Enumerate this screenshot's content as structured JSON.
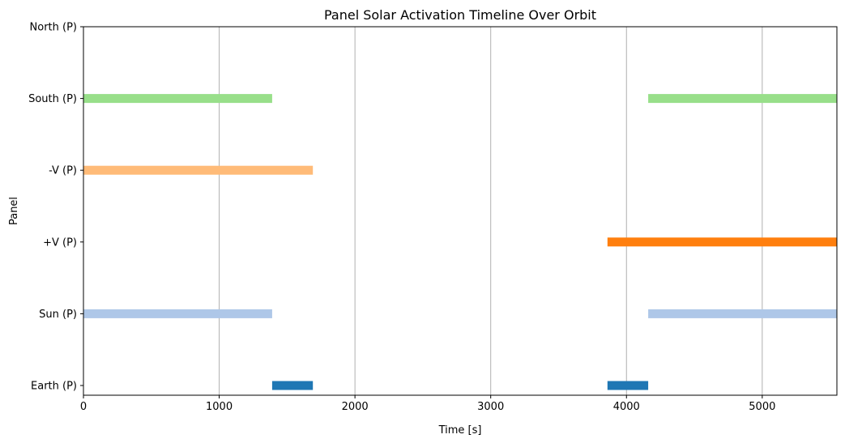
{
  "chart_data": {
    "type": "timeline",
    "title": "Panel Solar Activation Timeline Over Orbit",
    "xlabel": "Time [s]",
    "ylabel": "Panel",
    "xlim": [
      0,
      5550
    ],
    "x_ticks": [
      0,
      1000,
      2000,
      3000,
      4000,
      5000
    ],
    "x_grid": true,
    "y_grid": false,
    "categories": [
      "Earth (P)",
      "Sun (P)",
      "+V (P)",
      "-V (P)",
      "South (P)",
      "North (P)"
    ],
    "series": [
      {
        "category": "Earth (P)",
        "color": "#1f77b4",
        "intervals": [
          [
            1390,
            1690
          ],
          [
            3860,
            4160
          ]
        ]
      },
      {
        "category": "Sun (P)",
        "color": "#aec7e8",
        "intervals": [
          [
            0,
            1390
          ],
          [
            4160,
            5550
          ]
        ]
      },
      {
        "category": "+V (P)",
        "color": "#ff7f0e",
        "intervals": [
          [
            3860,
            5550
          ]
        ]
      },
      {
        "category": "-V (P)",
        "color": "#ffbb78",
        "intervals": [
          [
            0,
            1690
          ]
        ]
      },
      {
        "category": "South (P)",
        "color": "#98df8a",
        "intervals": [
          [
            0,
            1390
          ],
          [
            4160,
            5550
          ]
        ]
      },
      {
        "category": "North (P)",
        "color": "#2ca02c",
        "intervals": []
      }
    ]
  }
}
